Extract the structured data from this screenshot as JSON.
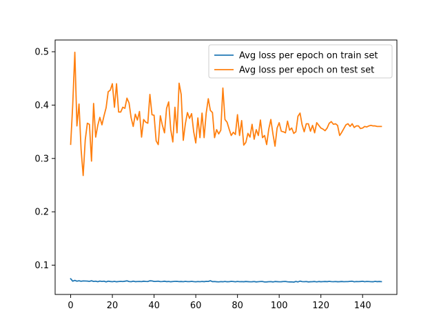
{
  "chart_data": {
    "type": "line",
    "title": "",
    "xlabel": "",
    "ylabel": "",
    "xlim": [
      -7.45,
      156.45
    ],
    "ylim": [
      0.0451,
      0.522
    ],
    "xticks": [
      0,
      20,
      40,
      60,
      80,
      100,
      120,
      140
    ],
    "yticks": [
      0.1,
      0.2,
      0.3,
      0.4,
      0.5
    ],
    "ytick_labels": [
      "0.1",
      "0.2",
      "0.3",
      "0.4",
      "0.5"
    ],
    "grid": false,
    "legend_position": "top-right",
    "series": [
      {
        "name": "Avg loss per epoch on train set",
        "color": "#1f77b4",
        "values": [
          0.0745,
          0.07,
          0.0715,
          0.07,
          0.0708,
          0.0698,
          0.0705,
          0.0703,
          0.0701,
          0.0697,
          0.0708,
          0.0695,
          0.07,
          0.069,
          0.0702,
          0.0695,
          0.07,
          0.0687,
          0.07,
          0.0694,
          0.069,
          0.0697,
          0.0689,
          0.0693,
          0.0696,
          0.0693,
          0.0699,
          0.0706,
          0.0693,
          0.069,
          0.07,
          0.0691,
          0.0693,
          0.0695,
          0.0692,
          0.0699,
          0.0695,
          0.0693,
          0.0707,
          0.0705,
          0.0695,
          0.0696,
          0.07,
          0.0692,
          0.0693,
          0.0699,
          0.0691,
          0.0695,
          0.0689,
          0.0693,
          0.0697,
          0.0696,
          0.0692,
          0.0694,
          0.069,
          0.0696,
          0.0692,
          0.0692,
          0.0697,
          0.0692,
          0.0688,
          0.0693,
          0.069,
          0.0695,
          0.0691,
          0.0697,
          0.0695,
          0.0708,
          0.0691,
          0.0693,
          0.0689,
          0.0687,
          0.0692,
          0.0689,
          0.0695,
          0.0689,
          0.069,
          0.0696,
          0.0693,
          0.0688,
          0.0695,
          0.069,
          0.0692,
          0.0689,
          0.0694,
          0.0691,
          0.0688,
          0.0689,
          0.0693,
          0.0686,
          0.069,
          0.0693,
          0.0694,
          0.0685,
          0.0686,
          0.069,
          0.0692,
          0.0686,
          0.0694,
          0.0691,
          0.0688,
          0.0689,
          0.0693,
          0.0695,
          0.0688,
          0.0686,
          0.0687,
          0.0682,
          0.0695,
          0.0686,
          0.0701,
          0.0692,
          0.069,
          0.0693,
          0.0686,
          0.0689,
          0.0691,
          0.0694,
          0.0687,
          0.0694,
          0.0689,
          0.0692,
          0.0694,
          0.0691,
          0.0697,
          0.0692,
          0.069,
          0.0693,
          0.0689,
          0.0691,
          0.0694,
          0.069,
          0.0692,
          0.0692,
          0.0696,
          0.0699,
          0.0688,
          0.0693,
          0.0692,
          0.0694,
          0.0698,
          0.069,
          0.0695,
          0.0693,
          0.069,
          0.0689,
          0.0696,
          0.0691,
          0.0694,
          0.0691
        ]
      },
      {
        "name": "Avg loss per epoch on test set",
        "color": "#ff7f0e",
        "values": [
          0.3265,
          0.401,
          0.499,
          0.361,
          0.402,
          0.317,
          0.268,
          0.335,
          0.366,
          0.364,
          0.295,
          0.403,
          0.34,
          0.362,
          0.377,
          0.363,
          0.38,
          0.395,
          0.425,
          0.428,
          0.44,
          0.396,
          0.44,
          0.387,
          0.387,
          0.396,
          0.394,
          0.413,
          0.404,
          0.376,
          0.36,
          0.383,
          0.372,
          0.388,
          0.34,
          0.373,
          0.368,
          0.366,
          0.42,
          0.382,
          0.381,
          0.333,
          0.326,
          0.38,
          0.362,
          0.348,
          0.394,
          0.406,
          0.354,
          0.331,
          0.396,
          0.348,
          0.441,
          0.42,
          0.334,
          0.365,
          0.386,
          0.375,
          0.384,
          0.35,
          0.329,
          0.376,
          0.339,
          0.385,
          0.339,
          0.385,
          0.412,
          0.39,
          0.386,
          0.339,
          0.354,
          0.346,
          0.353,
          0.432,
          0.373,
          0.368,
          0.355,
          0.343,
          0.349,
          0.345,
          0.382,
          0.343,
          0.371,
          0.325,
          0.33,
          0.347,
          0.34,
          0.364,
          0.336,
          0.354,
          0.343,
          0.372,
          0.339,
          0.343,
          0.326,
          0.355,
          0.373,
          0.346,
          0.323,
          0.357,
          0.367,
          0.351,
          0.35,
          0.348,
          0.37,
          0.353,
          0.357,
          0.347,
          0.35,
          0.379,
          0.385,
          0.363,
          0.35,
          0.365,
          0.365,
          0.351,
          0.362,
          0.348,
          0.367,
          0.362,
          0.357,
          0.355,
          0.352,
          0.357,
          0.366,
          0.369,
          0.364,
          0.365,
          0.362,
          0.343,
          0.349,
          0.356,
          0.363,
          0.365,
          0.36,
          0.365,
          0.358,
          0.361,
          0.361,
          0.356,
          0.357,
          0.36,
          0.359,
          0.361,
          0.362,
          0.361,
          0.361,
          0.36,
          0.36,
          0.36
        ]
      }
    ]
  }
}
